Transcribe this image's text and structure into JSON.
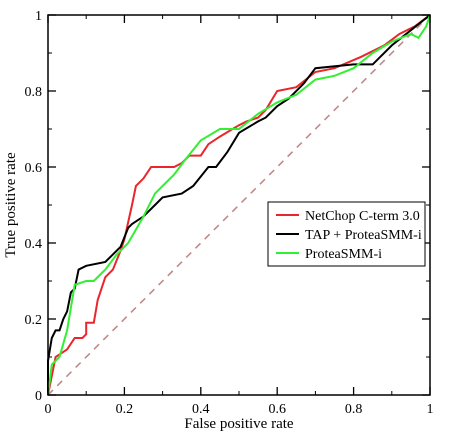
{
  "chart_data": {
    "type": "line",
    "title": "",
    "xlabel": "False positive rate",
    "ylabel": "True positive rate",
    "xlim": [
      0,
      1
    ],
    "ylim": [
      0,
      1
    ],
    "x_ticks": [
      0,
      0.2,
      0.4,
      0.6,
      0.8,
      1
    ],
    "y_ticks": [
      0,
      0.2,
      0.4,
      0.6,
      0.8,
      1
    ],
    "x_tick_labels": [
      "0",
      "0.2",
      "0.4",
      "0.6",
      "0.8",
      "1"
    ],
    "y_tick_labels": [
      "0",
      "0.2",
      "0.4",
      "0.6",
      "0.8",
      "1"
    ],
    "grid": false,
    "legend_position": "right-middle",
    "diagonal": {
      "color": "#c08a8a",
      "style": "dashed",
      "points": [
        [
          0,
          0
        ],
        [
          1,
          1
        ]
      ]
    },
    "series": [
      {
        "name": "NetChop C-term 3.0",
        "color": "#e8262b",
        "points": [
          [
            0,
            0
          ],
          [
            0.02,
            0.1
          ],
          [
            0.05,
            0.12
          ],
          [
            0.07,
            0.15
          ],
          [
            0.09,
            0.15
          ],
          [
            0.1,
            0.16
          ],
          [
            0.1,
            0.19
          ],
          [
            0.12,
            0.19
          ],
          [
            0.13,
            0.25
          ],
          [
            0.15,
            0.31
          ],
          [
            0.17,
            0.33
          ],
          [
            0.19,
            0.38
          ],
          [
            0.2,
            0.41
          ],
          [
            0.22,
            0.5
          ],
          [
            0.23,
            0.55
          ],
          [
            0.25,
            0.57
          ],
          [
            0.27,
            0.6
          ],
          [
            0.33,
            0.6
          ],
          [
            0.35,
            0.61
          ],
          [
            0.37,
            0.63
          ],
          [
            0.4,
            0.63
          ],
          [
            0.42,
            0.66
          ],
          [
            0.45,
            0.68
          ],
          [
            0.5,
            0.71
          ],
          [
            0.52,
            0.72
          ],
          [
            0.55,
            0.73
          ],
          [
            0.57,
            0.75
          ],
          [
            0.6,
            0.8
          ],
          [
            0.65,
            0.81
          ],
          [
            0.7,
            0.85
          ],
          [
            0.75,
            0.86
          ],
          [
            0.82,
            0.89
          ],
          [
            0.88,
            0.92
          ],
          [
            0.92,
            0.95
          ],
          [
            0.96,
            0.97
          ],
          [
            1,
            1
          ]
        ]
      },
      {
        "name": "TAP + ProteaSMM-i",
        "color": "#000000",
        "points": [
          [
            0,
            0
          ],
          [
            0,
            0.09
          ],
          [
            0.01,
            0.15
          ],
          [
            0.02,
            0.17
          ],
          [
            0.03,
            0.17
          ],
          [
            0.04,
            0.2
          ],
          [
            0.05,
            0.22
          ],
          [
            0.06,
            0.27
          ],
          [
            0.07,
            0.28
          ],
          [
            0.08,
            0.33
          ],
          [
            0.1,
            0.34
          ],
          [
            0.15,
            0.35
          ],
          [
            0.19,
            0.39
          ],
          [
            0.21,
            0.44
          ],
          [
            0.22,
            0.45
          ],
          [
            0.25,
            0.47
          ],
          [
            0.28,
            0.5
          ],
          [
            0.3,
            0.52
          ],
          [
            0.35,
            0.53
          ],
          [
            0.38,
            0.55
          ],
          [
            0.42,
            0.6
          ],
          [
            0.44,
            0.6
          ],
          [
            0.47,
            0.64
          ],
          [
            0.5,
            0.69
          ],
          [
            0.55,
            0.72
          ],
          [
            0.57,
            0.73
          ],
          [
            0.6,
            0.76
          ],
          [
            0.63,
            0.78
          ],
          [
            0.67,
            0.82
          ],
          [
            0.7,
            0.86
          ],
          [
            0.8,
            0.87
          ],
          [
            0.85,
            0.87
          ],
          [
            0.9,
            0.92
          ],
          [
            0.95,
            0.96
          ],
          [
            1,
            1
          ]
        ]
      },
      {
        "name": "ProteaSMM-i",
        "color": "#33ee33",
        "points": [
          [
            0,
            0
          ],
          [
            0.01,
            0.08
          ],
          [
            0.03,
            0.1
          ],
          [
            0.05,
            0.17
          ],
          [
            0.07,
            0.29
          ],
          [
            0.1,
            0.3
          ],
          [
            0.12,
            0.3
          ],
          [
            0.15,
            0.33
          ],
          [
            0.18,
            0.37
          ],
          [
            0.21,
            0.4
          ],
          [
            0.25,
            0.47
          ],
          [
            0.28,
            0.53
          ],
          [
            0.3,
            0.55
          ],
          [
            0.33,
            0.58
          ],
          [
            0.36,
            0.62
          ],
          [
            0.4,
            0.67
          ],
          [
            0.45,
            0.7
          ],
          [
            0.5,
            0.7
          ],
          [
            0.55,
            0.74
          ],
          [
            0.6,
            0.77
          ],
          [
            0.65,
            0.79
          ],
          [
            0.7,
            0.83
          ],
          [
            0.75,
            0.84
          ],
          [
            0.8,
            0.86
          ],
          [
            0.85,
            0.9
          ],
          [
            0.9,
            0.93
          ],
          [
            0.95,
            0.95
          ],
          [
            0.97,
            0.94
          ],
          [
            0.99,
            0.97
          ],
          [
            1,
            1
          ]
        ]
      }
    ]
  }
}
